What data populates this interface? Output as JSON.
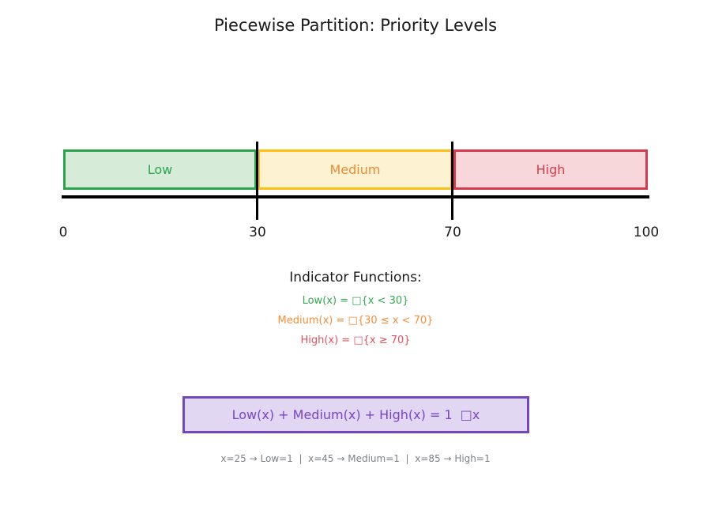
{
  "title": "Piecewise Partition: Priority Levels",
  "diagram": {
    "axis": {
      "min": 0,
      "max": 100,
      "ticks": [
        "0",
        "30",
        "70",
        "100"
      ],
      "boundaries": [
        30,
        70
      ]
    },
    "segments": [
      {
        "label": "Low",
        "start": 0,
        "end": 30,
        "fill": "#d6ecd9",
        "border": "#2ca44e",
        "text_color": "#2ca44e"
      },
      {
        "label": "Medium",
        "start": 30,
        "end": 70,
        "fill": "#fdf3d2",
        "border": "#fcc011",
        "text_color": "#ec8b33"
      },
      {
        "label": "High",
        "start": 70,
        "end": 100,
        "fill": "#f7d7da",
        "border": "#d23c4e",
        "text_color": "#d23c4e"
      }
    ]
  },
  "indicator": {
    "heading": "Indicator Functions:",
    "formulas": [
      {
        "text": "Low(x) = □{x < 30}",
        "color": "#35a852"
      },
      {
        "text": "Medium(x) = □{30 ≤ x < 70}",
        "color": "#f68d3a"
      },
      {
        "text": "High(x) = □{x ≥ 70}",
        "color": "#e0525f"
      }
    ]
  },
  "identity_box": {
    "text": "Low(x) + Medium(x) + High(x) = 1  □x",
    "fill": "#e2d7f3",
    "border": "#7448bc",
    "text_color": "#7a44c4"
  },
  "examples_caption": "x=25 → Low=1  |  x=45 → Medium=1  |  x=85 → High=1"
}
